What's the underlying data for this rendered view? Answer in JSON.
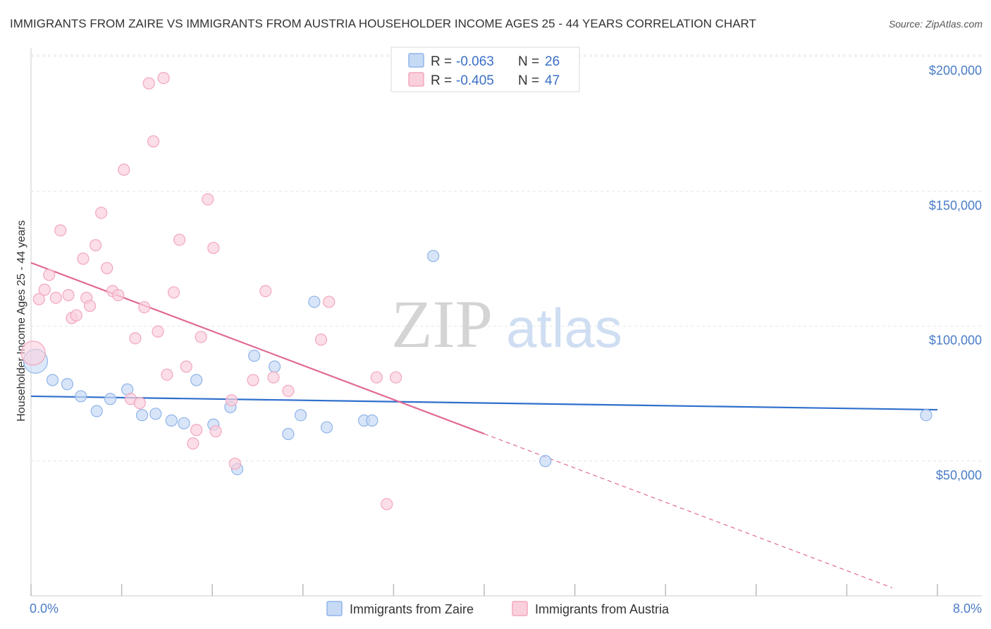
{
  "chart_data": {
    "type": "scatter",
    "title": "IMMIGRANTS FROM ZAIRE VS IMMIGRANTS FROM AUSTRIA HOUSEHOLDER INCOME AGES 25 - 44 YEARS CORRELATION CHART",
    "source": "Source: ZipAtlas.com",
    "xlabel": "",
    "ylabel": "Householder Income Ages 25 - 44 years",
    "xlim": [
      0,
      8
    ],
    "ylim": [
      0,
      205000
    ],
    "x_tick_labels": [
      "0.0%",
      "8.0%"
    ],
    "y_ticks": [
      {
        "value": 50000,
        "label": "$50,000"
      },
      {
        "value": 100000,
        "label": "$100,000"
      },
      {
        "value": 150000,
        "label": "$150,000"
      },
      {
        "value": 200000,
        "label": "$200,000"
      }
    ],
    "grid": true,
    "watermark": {
      "zip": "ZIP",
      "atlas": "atlas"
    },
    "legend": {
      "position": "top-center",
      "entries": [
        {
          "r_label": "R =",
          "r_value": "-0.063",
          "n_label": "N =",
          "n_value": "26"
        },
        {
          "r_label": "R =",
          "r_value": "-0.405",
          "n_label": "N =",
          "n_value": "47"
        }
      ]
    },
    "series": [
      {
        "name": "Immigrants from Zaire",
        "color": "#8fb4e8",
        "fill": "#c7daf5",
        "line_color": "#2f6fcc",
        "trend": {
          "x0": 0.0,
          "y0": 74000,
          "x1": 8.0,
          "y1": 69000,
          "dash_from": null
        },
        "points": [
          {
            "x": 0.04,
            "y": 87000,
            "big": true
          },
          {
            "x": 0.19,
            "y": 80000
          },
          {
            "x": 0.32,
            "y": 78500
          },
          {
            "x": 0.44,
            "y": 74000
          },
          {
            "x": 0.58,
            "y": 68500
          },
          {
            "x": 0.7,
            "y": 73000
          },
          {
            "x": 0.85,
            "y": 76500
          },
          {
            "x": 0.98,
            "y": 67000
          },
          {
            "x": 1.1,
            "y": 67500
          },
          {
            "x": 1.24,
            "y": 65000
          },
          {
            "x": 1.35,
            "y": 64000
          },
          {
            "x": 1.46,
            "y": 80000
          },
          {
            "x": 1.61,
            "y": 63500
          },
          {
            "x": 1.76,
            "y": 70000
          },
          {
            "x": 1.82,
            "y": 47000
          },
          {
            "x": 1.97,
            "y": 89000
          },
          {
            "x": 2.15,
            "y": 85000
          },
          {
            "x": 2.27,
            "y": 60000
          },
          {
            "x": 2.38,
            "y": 67000
          },
          {
            "x": 2.5,
            "y": 109000
          },
          {
            "x": 2.61,
            "y": 62500
          },
          {
            "x": 2.94,
            "y": 65000
          },
          {
            "x": 3.01,
            "y": 65000
          },
          {
            "x": 3.55,
            "y": 126000
          },
          {
            "x": 4.54,
            "y": 50000
          },
          {
            "x": 7.9,
            "y": 67000
          }
        ]
      },
      {
        "name": "Immigrants from Austria",
        "color": "#f2a7bf",
        "fill": "#fad0dd",
        "line_color": "#e06a95",
        "trend": {
          "x0": 0.0,
          "y0": 123500,
          "x1": 7.6,
          "y1": 3000,
          "dash_from": 4.0
        },
        "points": [
          {
            "x": 0.02,
            "y": 90000,
            "big": true
          },
          {
            "x": 0.07,
            "y": 110000
          },
          {
            "x": 0.12,
            "y": 113500
          },
          {
            "x": 0.16,
            "y": 119000
          },
          {
            "x": 0.22,
            "y": 110500
          },
          {
            "x": 0.26,
            "y": 135500
          },
          {
            "x": 0.33,
            "y": 111500
          },
          {
            "x": 0.36,
            "y": 103000
          },
          {
            "x": 0.4,
            "y": 104000
          },
          {
            "x": 0.46,
            "y": 125000
          },
          {
            "x": 0.49,
            "y": 110500
          },
          {
            "x": 0.52,
            "y": 107500
          },
          {
            "x": 0.57,
            "y": 130000
          },
          {
            "x": 0.62,
            "y": 142000
          },
          {
            "x": 0.67,
            "y": 121500
          },
          {
            "x": 0.72,
            "y": 113000
          },
          {
            "x": 0.77,
            "y": 111500
          },
          {
            "x": 0.82,
            "y": 158000
          },
          {
            "x": 0.88,
            "y": 73000
          },
          {
            "x": 0.92,
            "y": 95500
          },
          {
            "x": 0.96,
            "y": 71500
          },
          {
            "x": 1.0,
            "y": 107000
          },
          {
            "x": 1.04,
            "y": 190000
          },
          {
            "x": 1.08,
            "y": 168500
          },
          {
            "x": 1.12,
            "y": 98000
          },
          {
            "x": 1.17,
            "y": 192000
          },
          {
            "x": 1.2,
            "y": 82000
          },
          {
            "x": 1.26,
            "y": 112500
          },
          {
            "x": 1.31,
            "y": 132000
          },
          {
            "x": 1.37,
            "y": 85000
          },
          {
            "x": 1.43,
            "y": 56500
          },
          {
            "x": 1.46,
            "y": 61500
          },
          {
            "x": 1.5,
            "y": 96000
          },
          {
            "x": 1.56,
            "y": 147000
          },
          {
            "x": 1.61,
            "y": 129000
          },
          {
            "x": 1.63,
            "y": 61000
          },
          {
            "x": 1.77,
            "y": 72500
          },
          {
            "x": 1.8,
            "y": 49000
          },
          {
            "x": 1.96,
            "y": 80000
          },
          {
            "x": 2.07,
            "y": 113000
          },
          {
            "x": 2.14,
            "y": 81000
          },
          {
            "x": 2.27,
            "y": 76000
          },
          {
            "x": 2.56,
            "y": 95000
          },
          {
            "x": 2.63,
            "y": 109000
          },
          {
            "x": 3.05,
            "y": 81000
          },
          {
            "x": 3.14,
            "y": 34000
          },
          {
            "x": 3.22,
            "y": 81000
          }
        ]
      }
    ]
  }
}
